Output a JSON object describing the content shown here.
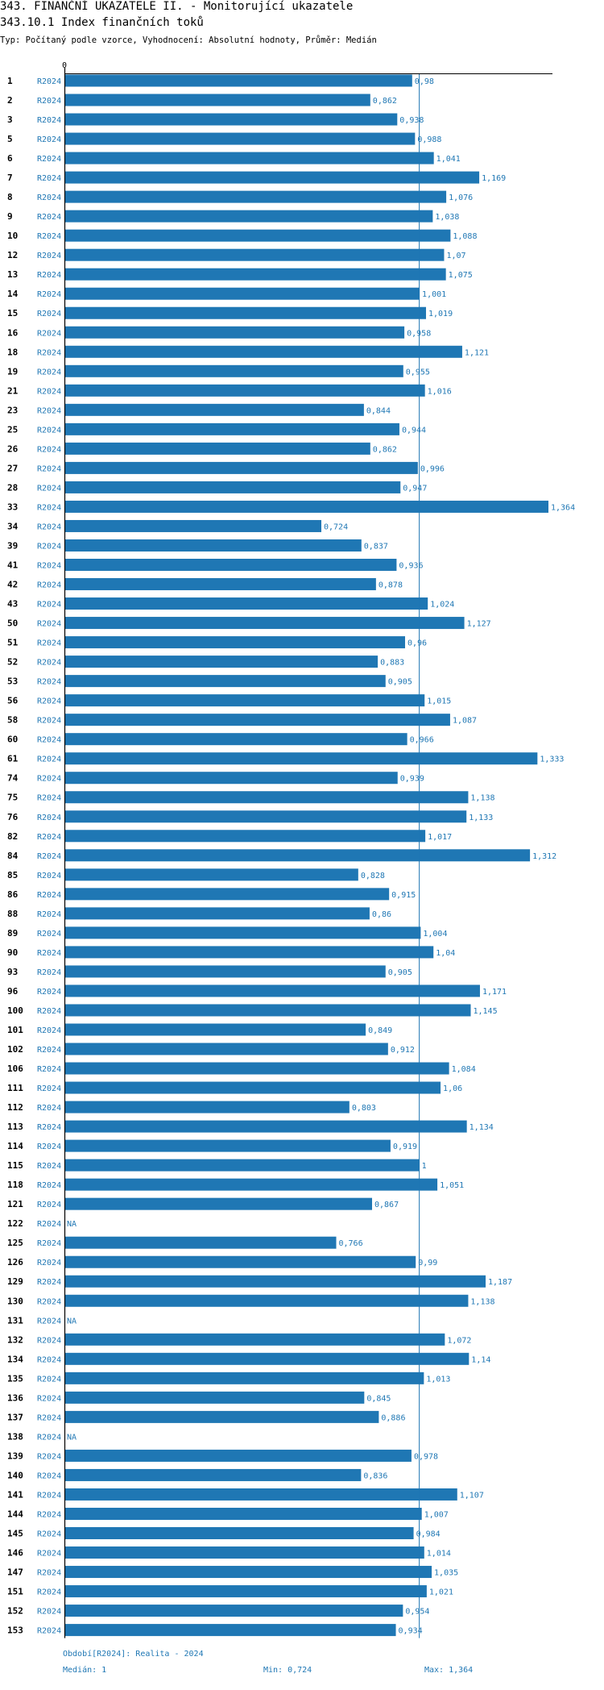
{
  "header": {
    "title": "343. FINANČNÍ UKAZATELE II. - Monitorující ukazatele",
    "subtitle": "343.10.1 Index finančních toků",
    "meta": "Typ: Počítaný podle vzorce, Vyhodnocení: Absolutní hodnoty, Průměr: Medián"
  },
  "chart_data": {
    "type": "bar",
    "orientation": "horizontal",
    "axis_zero_label": "0",
    "xlim": [
      0,
      1.364
    ],
    "median": 1,
    "period_label": "R2024",
    "rows": [
      {
        "id": "1",
        "value": 0.98,
        "label": "0,98"
      },
      {
        "id": "2",
        "value": 0.862,
        "label": "0,862"
      },
      {
        "id": "3",
        "value": 0.938,
        "label": "0,938"
      },
      {
        "id": "5",
        "value": 0.988,
        "label": "0,988"
      },
      {
        "id": "6",
        "value": 1.041,
        "label": "1,041"
      },
      {
        "id": "7",
        "value": 1.169,
        "label": "1,169"
      },
      {
        "id": "8",
        "value": 1.076,
        "label": "1,076"
      },
      {
        "id": "9",
        "value": 1.038,
        "label": "1,038"
      },
      {
        "id": "10",
        "value": 1.088,
        "label": "1,088"
      },
      {
        "id": "12",
        "value": 1.07,
        "label": "1,07"
      },
      {
        "id": "13",
        "value": 1.075,
        "label": "1,075"
      },
      {
        "id": "14",
        "value": 1.001,
        "label": "1,001"
      },
      {
        "id": "15",
        "value": 1.019,
        "label": "1,019"
      },
      {
        "id": "16",
        "value": 0.958,
        "label": "0,958"
      },
      {
        "id": "18",
        "value": 1.121,
        "label": "1,121"
      },
      {
        "id": "19",
        "value": 0.955,
        "label": "0,955"
      },
      {
        "id": "21",
        "value": 1.016,
        "label": "1,016"
      },
      {
        "id": "23",
        "value": 0.844,
        "label": "0,844"
      },
      {
        "id": "25",
        "value": 0.944,
        "label": "0,944"
      },
      {
        "id": "26",
        "value": 0.862,
        "label": "0,862"
      },
      {
        "id": "27",
        "value": 0.996,
        "label": "0,996"
      },
      {
        "id": "28",
        "value": 0.947,
        "label": "0,947"
      },
      {
        "id": "33",
        "value": 1.364,
        "label": "1,364"
      },
      {
        "id": "34",
        "value": 0.724,
        "label": "0,724"
      },
      {
        "id": "39",
        "value": 0.837,
        "label": "0,837"
      },
      {
        "id": "41",
        "value": 0.936,
        "label": "0,936"
      },
      {
        "id": "42",
        "value": 0.878,
        "label": "0,878"
      },
      {
        "id": "43",
        "value": 1.024,
        "label": "1,024"
      },
      {
        "id": "50",
        "value": 1.127,
        "label": "1,127"
      },
      {
        "id": "51",
        "value": 0.96,
        "label": "0,96"
      },
      {
        "id": "52",
        "value": 0.883,
        "label": "0,883"
      },
      {
        "id": "53",
        "value": 0.905,
        "label": "0,905"
      },
      {
        "id": "56",
        "value": 1.015,
        "label": "1,015"
      },
      {
        "id": "58",
        "value": 1.087,
        "label": "1,087"
      },
      {
        "id": "60",
        "value": 0.966,
        "label": "0,966"
      },
      {
        "id": "61",
        "value": 1.333,
        "label": "1,333"
      },
      {
        "id": "74",
        "value": 0.939,
        "label": "0,939"
      },
      {
        "id": "75",
        "value": 1.138,
        "label": "1,138"
      },
      {
        "id": "76",
        "value": 1.133,
        "label": "1,133"
      },
      {
        "id": "82",
        "value": 1.017,
        "label": "1,017"
      },
      {
        "id": "84",
        "value": 1.312,
        "label": "1,312"
      },
      {
        "id": "85",
        "value": 0.828,
        "label": "0,828"
      },
      {
        "id": "86",
        "value": 0.915,
        "label": "0,915"
      },
      {
        "id": "88",
        "value": 0.86,
        "label": "0,86"
      },
      {
        "id": "89",
        "value": 1.004,
        "label": "1,004"
      },
      {
        "id": "90",
        "value": 1.04,
        "label": "1,04"
      },
      {
        "id": "93",
        "value": 0.905,
        "label": "0,905"
      },
      {
        "id": "96",
        "value": 1.171,
        "label": "1,171"
      },
      {
        "id": "100",
        "value": 1.145,
        "label": "1,145"
      },
      {
        "id": "101",
        "value": 0.849,
        "label": "0,849"
      },
      {
        "id": "102",
        "value": 0.912,
        "label": "0,912"
      },
      {
        "id": "106",
        "value": 1.084,
        "label": "1,084"
      },
      {
        "id": "111",
        "value": 1.06,
        "label": "1,06"
      },
      {
        "id": "112",
        "value": 0.803,
        "label": "0,803"
      },
      {
        "id": "113",
        "value": 1.134,
        "label": "1,134"
      },
      {
        "id": "114",
        "value": 0.919,
        "label": "0,919"
      },
      {
        "id": "115",
        "value": 1,
        "label": "1"
      },
      {
        "id": "118",
        "value": 1.051,
        "label": "1,051"
      },
      {
        "id": "121",
        "value": 0.867,
        "label": "0,867"
      },
      {
        "id": "122",
        "value": null,
        "label": "NA"
      },
      {
        "id": "125",
        "value": 0.766,
        "label": "0,766"
      },
      {
        "id": "126",
        "value": 0.99,
        "label": "0,99"
      },
      {
        "id": "129",
        "value": 1.187,
        "label": "1,187"
      },
      {
        "id": "130",
        "value": 1.138,
        "label": "1,138"
      },
      {
        "id": "131",
        "value": null,
        "label": "NA"
      },
      {
        "id": "132",
        "value": 1.072,
        "label": "1,072"
      },
      {
        "id": "134",
        "value": 1.14,
        "label": "1,14"
      },
      {
        "id": "135",
        "value": 1.013,
        "label": "1,013"
      },
      {
        "id": "136",
        "value": 0.845,
        "label": "0,845"
      },
      {
        "id": "137",
        "value": 0.886,
        "label": "0,886"
      },
      {
        "id": "138",
        "value": null,
        "label": "NA"
      },
      {
        "id": "139",
        "value": 0.978,
        "label": "0,978"
      },
      {
        "id": "140",
        "value": 0.836,
        "label": "0,836"
      },
      {
        "id": "141",
        "value": 1.107,
        "label": "1,107"
      },
      {
        "id": "144",
        "value": 1.007,
        "label": "1,007"
      },
      {
        "id": "145",
        "value": 0.984,
        "label": "0,984"
      },
      {
        "id": "146",
        "value": 1.014,
        "label": "1,014"
      },
      {
        "id": "147",
        "value": 1.035,
        "label": "1,035"
      },
      {
        "id": "151",
        "value": 1.021,
        "label": "1,021"
      },
      {
        "id": "152",
        "value": 0.954,
        "label": "0,954"
      },
      {
        "id": "153",
        "value": 0.934,
        "label": "0,934"
      }
    ],
    "colors": {
      "bar": "#1f77b4",
      "label": "#1f77b4",
      "axis": "#000000",
      "median_line": "#1f77b4"
    }
  },
  "footer": {
    "period": "Období[R2024]: Realita - 2024",
    "median": "Medián: 1",
    "min": "Min: 0,724",
    "max": "Max: 1,364"
  }
}
